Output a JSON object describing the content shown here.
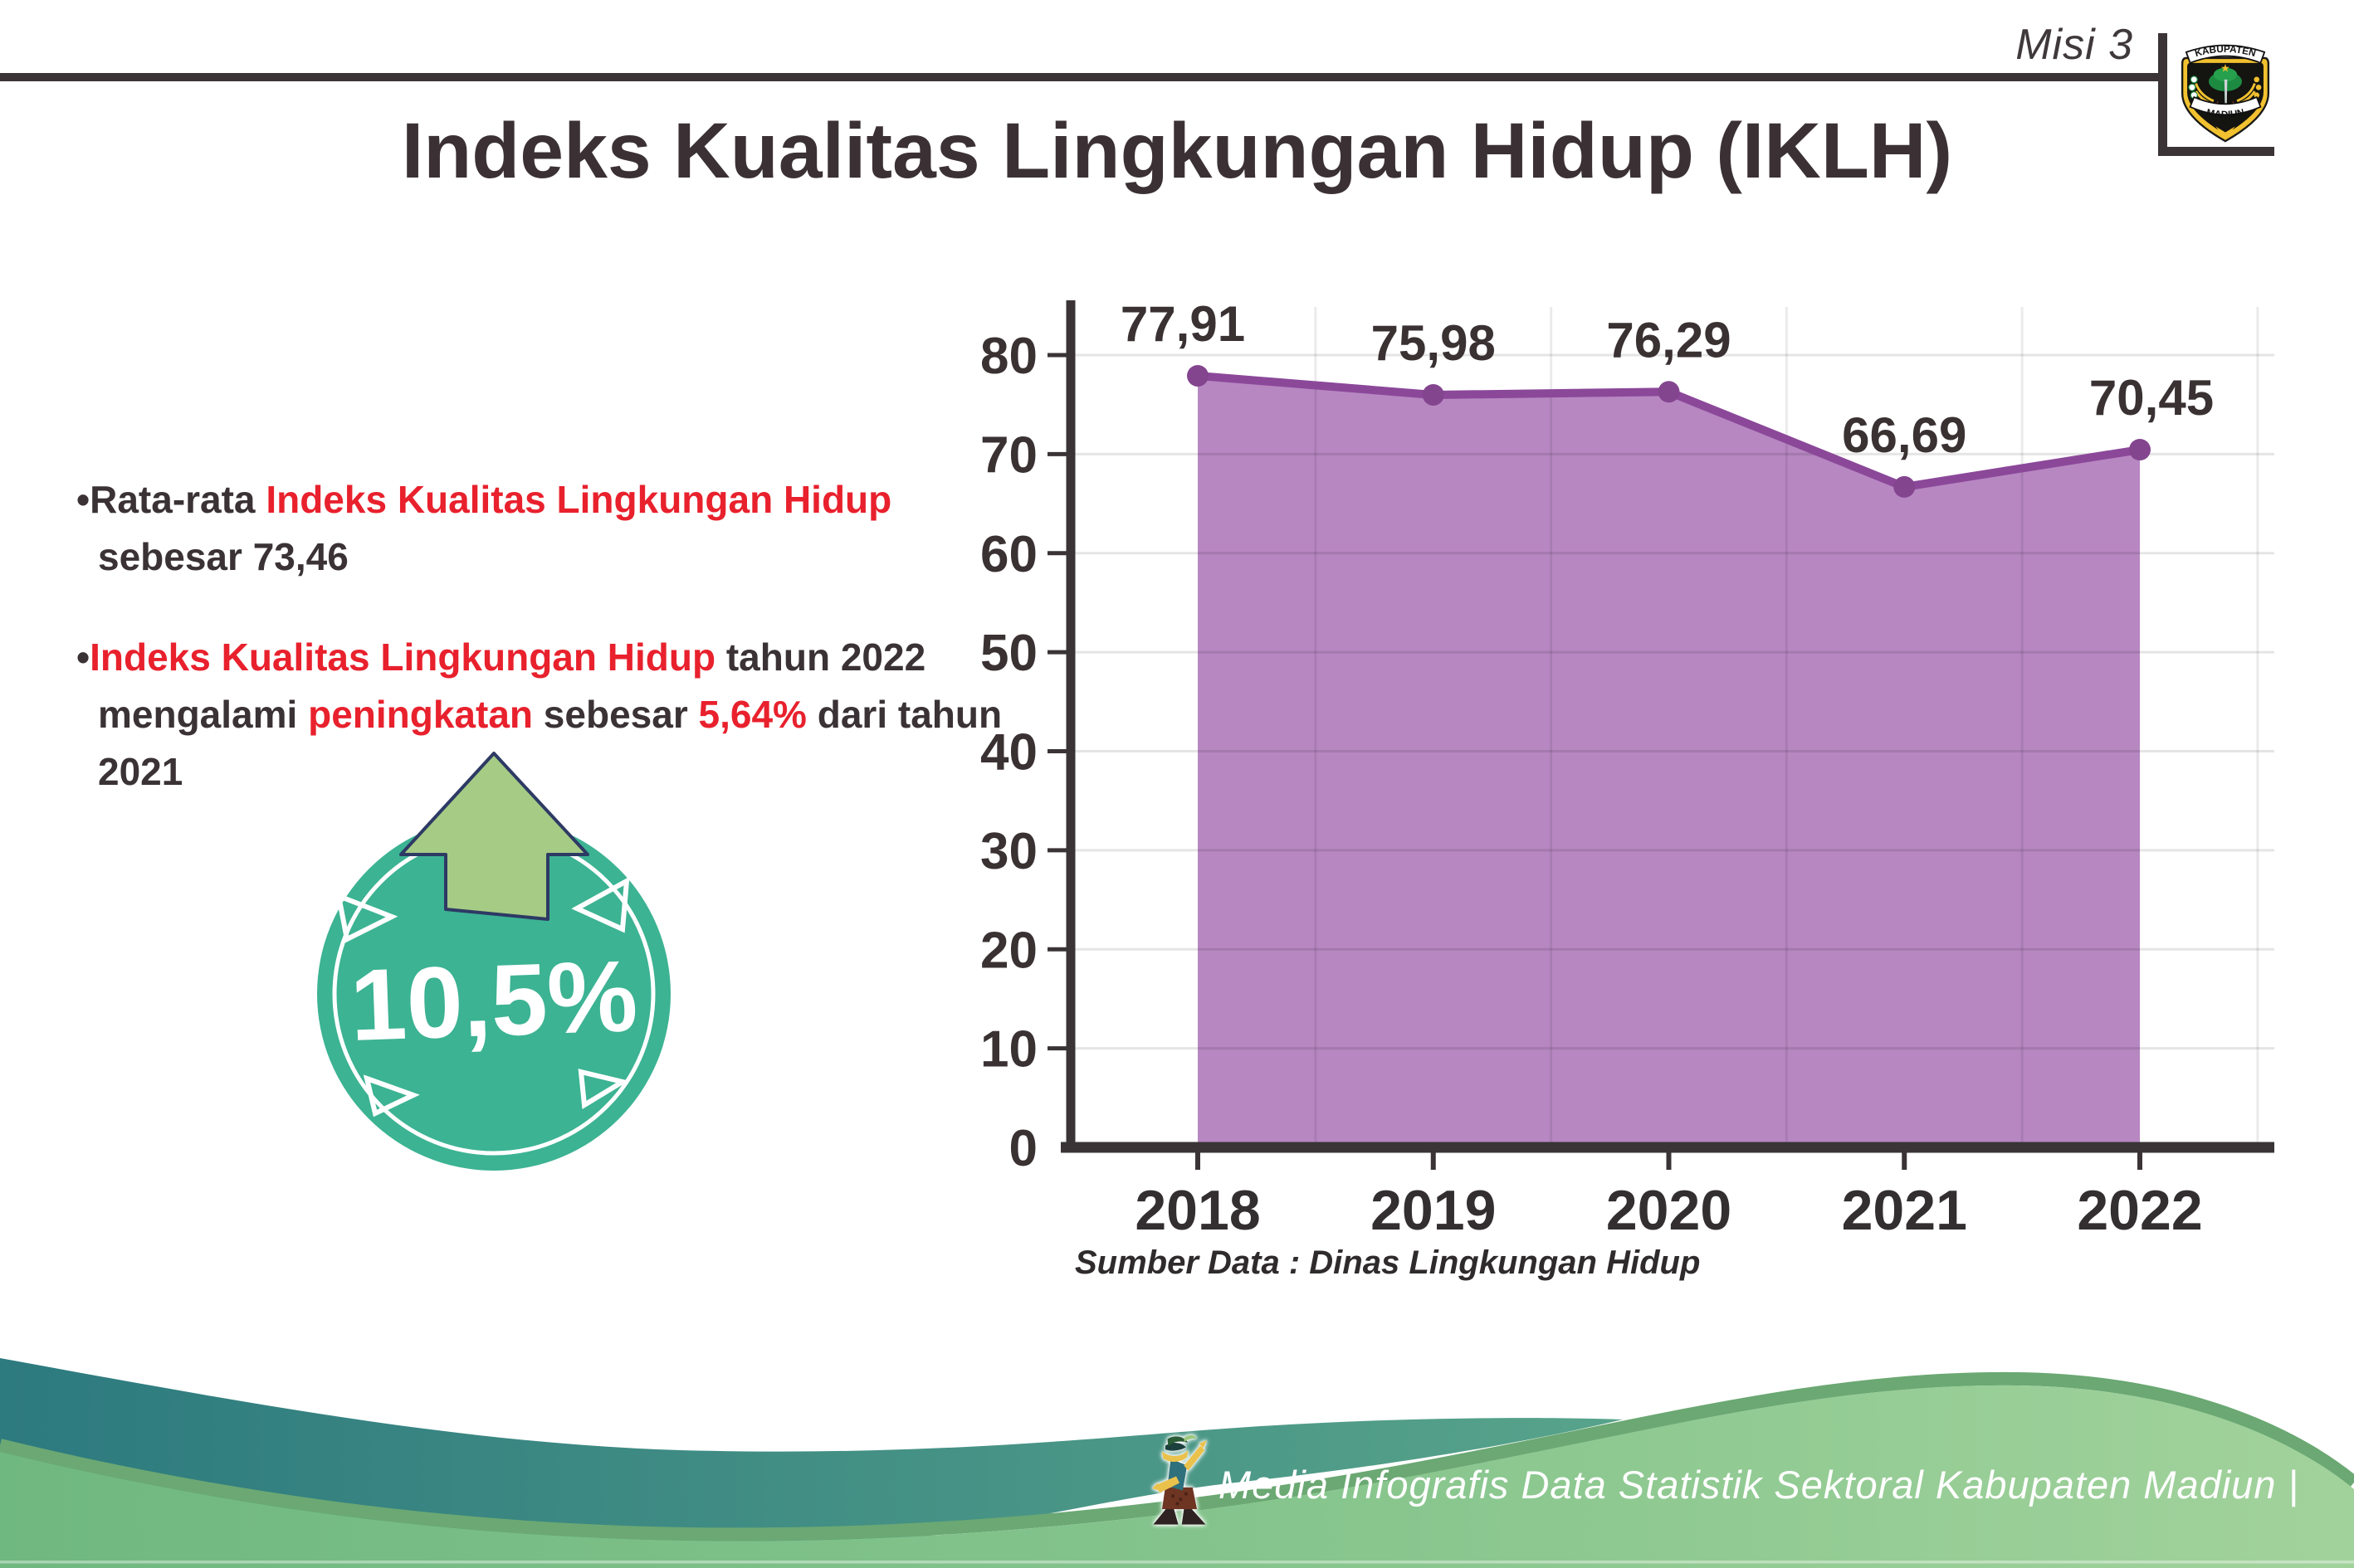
{
  "header": {
    "misi_label": "Misi 3",
    "title": "Indeks Kualitas Lingkungan Hidup (IKLH)",
    "logo": {
      "top_text": "KABUPATEN",
      "bottom_text": "MADIUN"
    }
  },
  "bullets": {
    "glyph": "•",
    "b1_pre": "Rata-rata ",
    "b1_red": "Indeks Kualitas Lingkungan Hidup",
    "b1_post": " sebesar 73,46",
    "b2_red1": "Indeks Kualitas Lingkungan Hidup",
    "b2_mid1": " tahun 2022 mengalami ",
    "b2_red2": "peningkatan",
    "b2_mid2": " sebesar ",
    "b2_red3": "5,64%",
    "b2_post": " dari tahun 2021"
  },
  "badge": {
    "value": "10,5%",
    "direction": "up-arrow"
  },
  "chart_data": {
    "type": "area",
    "title": "",
    "xlabel": "",
    "ylabel": "",
    "categories": [
      "2018",
      "2019",
      "2020",
      "2021",
      "2022"
    ],
    "values": [
      77.91,
      75.98,
      76.29,
      66.69,
      70.45
    ],
    "value_labels": [
      "77,91",
      "75,98",
      "76,29",
      "66,69",
      "70,45"
    ],
    "yticks": [
      0,
      10,
      20,
      30,
      40,
      50,
      60,
      70,
      80
    ],
    "ylim": [
      0,
      80
    ],
    "grid": true,
    "legend": "none",
    "area_color": "#b787c2",
    "line_color": "#8b4899",
    "marker_color": "#84458f",
    "label_color": "#3a3133",
    "axis_color": "#3a3436"
  },
  "source_note": "Sumber Data : Dinas Lingkungan Hidup",
  "footer": {
    "caption": "Media Infografis Data Statistik Sektoral Kabupaten Madiun |"
  },
  "colors": {
    "accent_red": "#e8212d",
    "text_dark": "#3a3234",
    "badge_teal": "#3cb393",
    "arrow_green": "#a6cb85",
    "arrow_outline": "#2d3a64",
    "wave_teal": "#2d7a7f",
    "wave_green": "#79bd86"
  }
}
